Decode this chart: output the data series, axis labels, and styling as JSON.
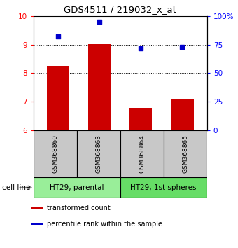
{
  "title": "GDS4511 / 219032_x_at",
  "samples": [
    "GSM368860",
    "GSM368863",
    "GSM368864",
    "GSM368865"
  ],
  "bar_values": [
    8.25,
    9.02,
    6.78,
    7.08
  ],
  "scatter_values": [
    82,
    95,
    72,
    73
  ],
  "ylim_left": [
    6,
    10
  ],
  "ylim_right": [
    0,
    100
  ],
  "yticks_left": [
    6,
    7,
    8,
    9,
    10
  ],
  "yticks_right": [
    0,
    25,
    50,
    75,
    100
  ],
  "ytick_labels_right": [
    "0",
    "25",
    "50",
    "75",
    "100%"
  ],
  "bar_color": "#cc0000",
  "scatter_color": "#0000cc",
  "groups": [
    {
      "label": "HT29, parental",
      "indices": [
        0,
        1
      ],
      "color": "#99ee99"
    },
    {
      "label": "HT29, 1st spheres",
      "indices": [
        2,
        3
      ],
      "color": "#66dd66"
    }
  ],
  "sample_box_color": "#c8c8c8",
  "legend_items": [
    {
      "color": "#cc0000",
      "label": "transformed count"
    },
    {
      "color": "#0000cc",
      "label": "percentile rank within the sample"
    }
  ],
  "cell_line_label": "cell line",
  "bar_width": 0.55,
  "grid_lines": [
    7,
    8,
    9
  ]
}
